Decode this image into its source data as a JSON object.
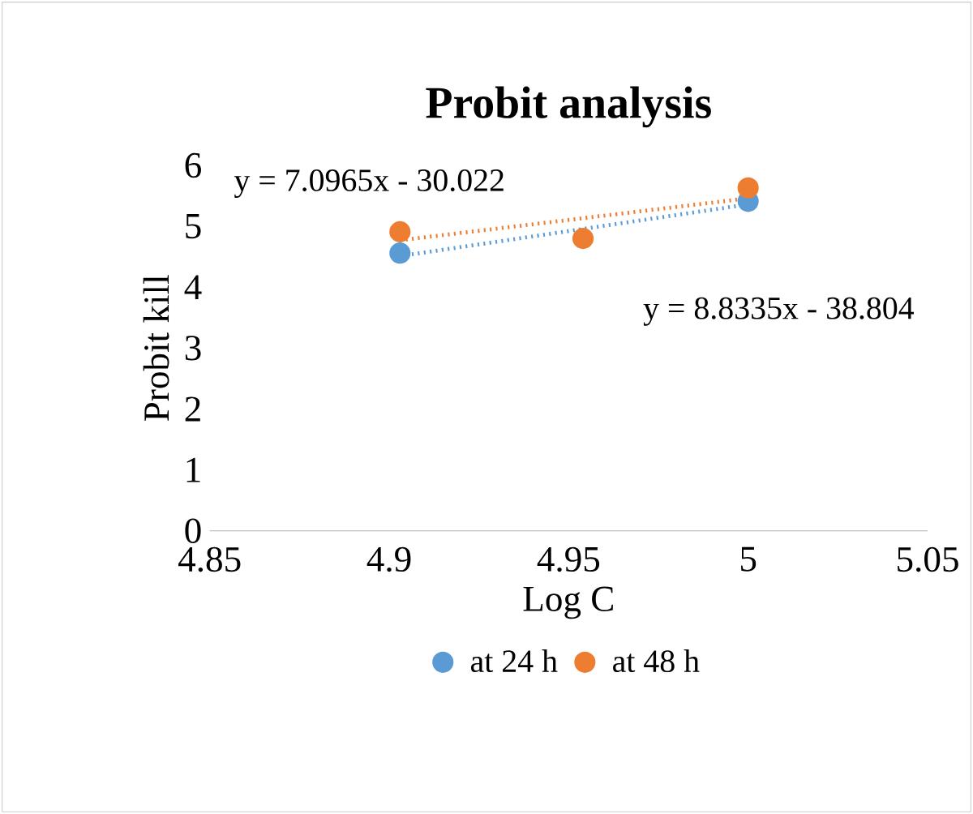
{
  "chart_data": {
    "type": "scatter",
    "title": "Probit analysis",
    "xlabel": "Log C",
    "ylabel": "Probit  kill",
    "xlim": [
      4.85,
      5.05
    ],
    "xticks": [
      4.85,
      4.9,
      4.95,
      5,
      5.05
    ],
    "ylim": [
      0,
      6
    ],
    "yticks": [
      0,
      1,
      2,
      3,
      4,
      5,
      6
    ],
    "marker": "circle",
    "legend": "bottom",
    "grid": false,
    "series": [
      {
        "name": "at 24 h",
        "color": "#5b9bd5",
        "x": [
          4.903,
          4.954,
          5.0
        ],
        "values": [
          4.56,
          null,
          5.41
        ]
      },
      {
        "name": "at 48 h",
        "color": "#ed7d31",
        "x": [
          4.903,
          4.954,
          5.0
        ],
        "values": [
          4.91,
          4.8,
          5.63
        ]
      },
      {
        "type": "line",
        "color": "#5b9bd5",
        "line_style": "dotted",
        "marker": "none",
        "x": [
          4.903,
          5.0
        ],
        "values": [
          4.51,
          5.36
        ]
      },
      {
        "type": "line",
        "color": "#ed7d31",
        "line_style": "dotted",
        "marker": "none",
        "x": [
          4.903,
          5.0
        ],
        "values": [
          4.77,
          5.46
        ]
      }
    ],
    "annotations": [
      "y = 7.0965x - 30.022",
      "y = 8.8335x - 38.804"
    ]
  }
}
